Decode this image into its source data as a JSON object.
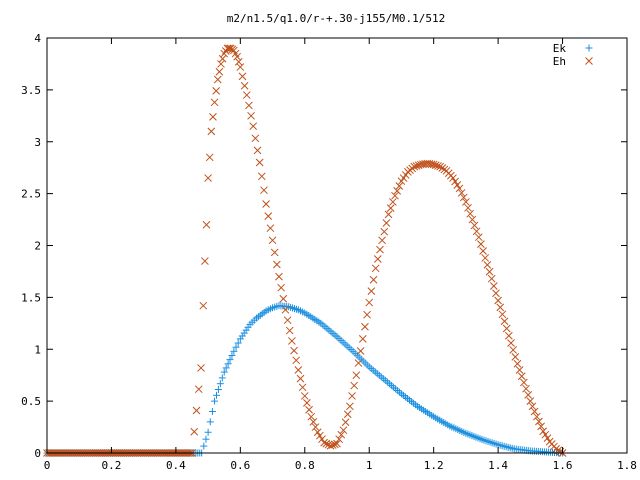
{
  "chart_data": {
    "type": "scatter",
    "title": "m2/n1.5/q1.0/r-+.30-j155/M0.1/512",
    "xlabel": "",
    "ylabel": "",
    "xlim": [
      0,
      1.8
    ],
    "ylim": [
      0,
      4
    ],
    "x_ticks": [
      "0",
      "0.2",
      "0.4",
      "0.6",
      "0.8",
      "1",
      "1.2",
      "1.4",
      "1.6",
      "1.8"
    ],
    "y_ticks": [
      "0",
      "0.5",
      "1",
      "1.5",
      "2",
      "2.5",
      "3",
      "3.5",
      "4"
    ],
    "grid": false,
    "legend_position": "top-right",
    "series": [
      {
        "name": "Ek",
        "marker": "+",
        "color": "#1a8fe0",
        "x": [
          0,
          0.05,
          0.1,
          0.15,
          0.2,
          0.25,
          0.3,
          0.35,
          0.4,
          0.45,
          0.48,
          0.5,
          0.52,
          0.55,
          0.58,
          0.6,
          0.63,
          0.65,
          0.68,
          0.7,
          0.72,
          0.75,
          0.78,
          0.8,
          0.85,
          0.9,
          0.95,
          1.0,
          1.05,
          1.1,
          1.15,
          1.2,
          1.25,
          1.3,
          1.35,
          1.4,
          1.45,
          1.5,
          1.55,
          1.6
        ],
        "y": [
          0,
          0,
          0,
          0,
          0,
          0,
          0,
          0,
          0,
          0,
          0,
          0.2,
          0.5,
          0.78,
          0.98,
          1.1,
          1.24,
          1.3,
          1.37,
          1.4,
          1.42,
          1.41,
          1.38,
          1.35,
          1.25,
          1.12,
          0.98,
          0.83,
          0.7,
          0.57,
          0.45,
          0.35,
          0.26,
          0.19,
          0.13,
          0.08,
          0.04,
          0.02,
          0.01,
          0
        ]
      },
      {
        "name": "Eh",
        "marker": "x",
        "color": "#c0501a",
        "x": [
          0,
          0.05,
          0.1,
          0.15,
          0.2,
          0.25,
          0.3,
          0.35,
          0.4,
          0.45,
          0.478,
          0.485,
          0.49,
          0.495,
          0.5,
          0.505,
          0.51,
          0.52,
          0.53,
          0.54,
          0.55,
          0.56,
          0.57,
          0.58,
          0.59,
          0.6,
          0.62,
          0.64,
          0.66,
          0.68,
          0.7,
          0.72,
          0.74,
          0.76,
          0.78,
          0.8,
          0.82,
          0.84,
          0.86,
          0.88,
          0.9,
          0.92,
          0.94,
          0.96,
          0.98,
          1.0,
          1.02,
          1.04,
          1.06,
          1.08,
          1.1,
          1.12,
          1.14,
          1.16,
          1.18,
          1.2,
          1.22,
          1.24,
          1.26,
          1.28,
          1.3,
          1.32,
          1.34,
          1.36,
          1.38,
          1.4,
          1.42,
          1.44,
          1.46,
          1.48,
          1.5,
          1.52,
          1.54,
          1.56,
          1.58,
          1.6
        ],
        "y": [
          0,
          0,
          0,
          0,
          0,
          0,
          0,
          0,
          0,
          0,
          0.82,
          1.42,
          1.85,
          2.2,
          2.65,
          2.85,
          3.1,
          3.38,
          3.6,
          3.75,
          3.85,
          3.9,
          3.9,
          3.88,
          3.82,
          3.72,
          3.45,
          3.15,
          2.8,
          2.4,
          2.05,
          1.7,
          1.38,
          1.08,
          0.8,
          0.55,
          0.35,
          0.2,
          0.1,
          0.07,
          0.09,
          0.22,
          0.45,
          0.75,
          1.1,
          1.45,
          1.78,
          2.05,
          2.3,
          2.48,
          2.62,
          2.71,
          2.76,
          2.78,
          2.79,
          2.78,
          2.76,
          2.72,
          2.65,
          2.55,
          2.42,
          2.25,
          2.08,
          1.88,
          1.68,
          1.47,
          1.27,
          1.06,
          0.86,
          0.68,
          0.5,
          0.35,
          0.21,
          0.11,
          0.04,
          0
        ]
      }
    ]
  }
}
